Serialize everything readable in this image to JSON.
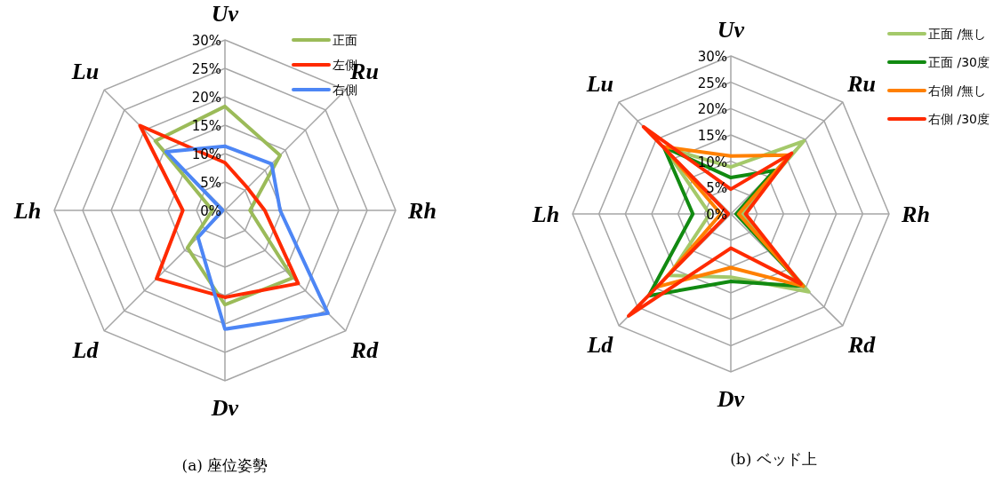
{
  "chart_data": [
    {
      "type": "radar",
      "title": "(a)  座位姿勢",
      "categories": [
        "Uv",
        "Ru",
        "Rh",
        "Rd",
        "Dv",
        "Ld",
        "Lh",
        "Lu"
      ],
      "ylim": [
        0,
        30
      ],
      "yticks": [
        {
          "value": 0,
          "label": "0%"
        },
        {
          "value": 5,
          "label": "5%"
        },
        {
          "value": 10,
          "label": "10%"
        },
        {
          "value": 15,
          "label": "15%"
        },
        {
          "value": 20,
          "label": "20%"
        },
        {
          "value": 25,
          "label": "25%"
        },
        {
          "value": 30,
          "label": "30%"
        }
      ],
      "grid": true,
      "legend": "top right",
      "line_style": "solid",
      "series": [
        {
          "name": "正面",
          "color": "#9bbb59",
          "values": [
            18.3,
            13.7,
            4.4,
            16.8,
            16.6,
            9.3,
            2.2,
            17.3
          ]
        },
        {
          "name": "左側",
          "color": "#ff2a00",
          "values": [
            8.4,
            5.6,
            7,
            18.2,
            15.3,
            17,
            7.4,
            21.1
          ]
        },
        {
          "name": "右側",
          "color": "#4d86f5",
          "values": [
            11.3,
            11.6,
            9.7,
            25.6,
            20.9,
            6.7,
            0.4,
            14.6
          ]
        }
      ]
    },
    {
      "type": "radar",
      "title": "(b)  ベッド上",
      "categories": [
        "Uv",
        "Ru",
        "Rh",
        "Rd",
        "Dv",
        "Ld",
        "Lh",
        "Lu"
      ],
      "ylim": [
        0,
        30
      ],
      "yticks": [
        {
          "value": 0,
          "label": "0%"
        },
        {
          "value": 5,
          "label": "5%"
        },
        {
          "value": 10,
          "label": "10%"
        },
        {
          "value": 15,
          "label": "15%"
        },
        {
          "value": 20,
          "label": "20%"
        },
        {
          "value": 25,
          "label": "25%"
        },
        {
          "value": 30,
          "label": "30%"
        }
      ],
      "grid": true,
      "legend": "top right",
      "line_style": "solid",
      "series": [
        {
          "name": "正面 /無し",
          "color": "#a4c96a",
          "values": [
            8.9,
            19.6,
            2,
            20.9,
            12,
            16.5,
            4,
            17.9
          ]
        },
        {
          "name": "正面 /30度",
          "color": "#118a11",
          "values": [
            6.9,
            11.7,
            1,
            19.4,
            12.8,
            22,
            7.2,
            18
          ]
        },
        {
          "name": "右側 /無し",
          "color": "#ff8000",
          "values": [
            11,
            15.8,
            1.5,
            19.4,
            10.2,
            19.5,
            1.9,
            18
          ]
        },
        {
          "name": "右側 /30度",
          "color": "#ff2a00",
          "values": [
            4.7,
            16.3,
            2.8,
            18.8,
            6.5,
            27.4,
            0.5,
            23.4
          ]
        }
      ]
    }
  ]
}
